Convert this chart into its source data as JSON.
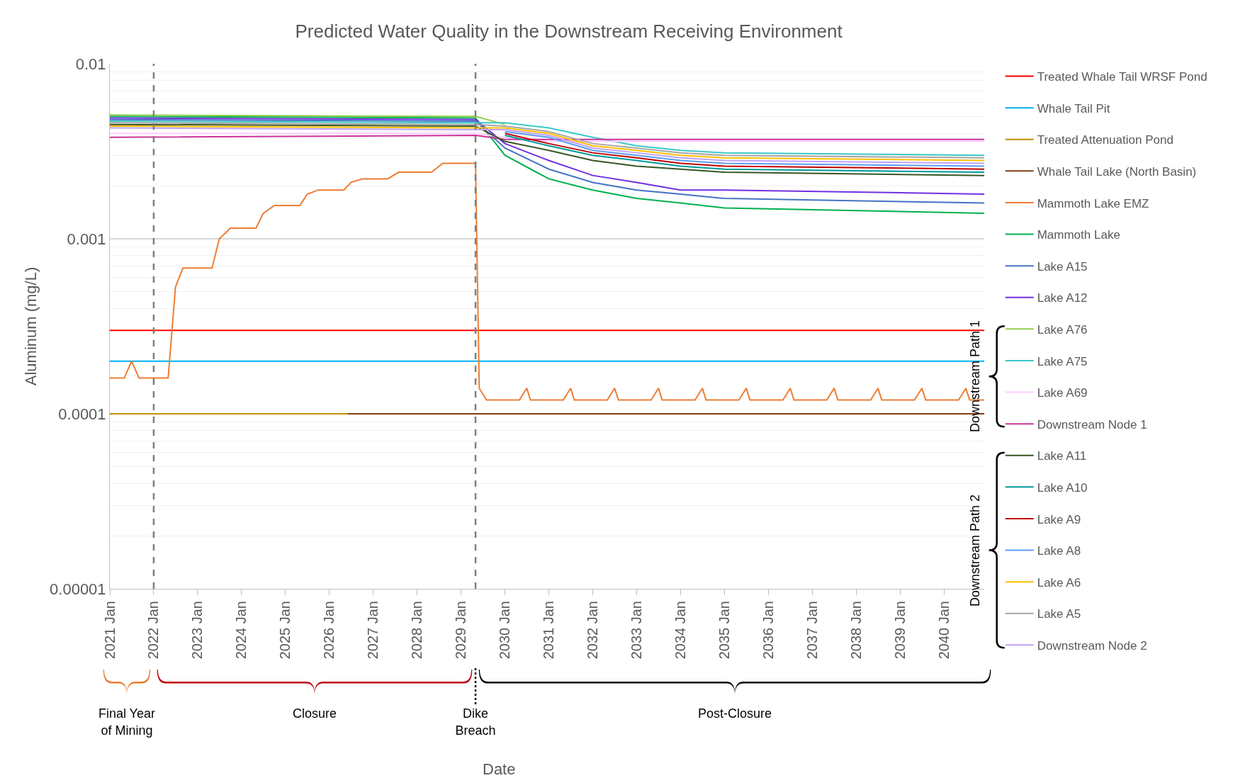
{
  "chart_data": {
    "type": "line",
    "title": "Predicted Water Quality in the Downstream Receiving Environment",
    "ylabel": "Aluminum (mg/L)",
    "x": [
      "2021-01",
      "2029-05",
      "2030-01",
      "2031-01",
      "2032-01",
      "2033-01",
      "2034-01",
      "2035-01",
      "2040-12"
    ],
    "series": [
      {
        "name": "Treated Whale Tail WRSF Pond",
        "color": "#ff0000",
        "x": [
          "2021-01",
          "2040-12"
        ],
        "values": [
          0.0003,
          0.0003
        ]
      },
      {
        "name": "Whale Tail Pit",
        "color": "#00b0f0",
        "x": [
          "2021-01",
          "2040-12"
        ],
        "values": [
          0.0002,
          0.0002
        ]
      },
      {
        "name": "Treated Attenuation Pond",
        "color": "#bf9000",
        "x": [
          "2021-01",
          "2026-06"
        ],
        "values": [
          0.0001,
          0.0001
        ]
      },
      {
        "name": "Whale Tail Lake (North Basin)",
        "color": "#843c0c",
        "x": [
          "2026-06",
          "2040-12"
        ],
        "values": [
          0.0001,
          0.0001
        ]
      },
      {
        "name": "Mammoth Lake EMZ",
        "color": "#ed7d31",
        "x": [
          "2021-01",
          "2021-05",
          "2021-07",
          "2021-09",
          "2022-05",
          "2022-07",
          "2022-09",
          "2023-05",
          "2023-07",
          "2023-10",
          "2024-05",
          "2024-07",
          "2024-10",
          "2025-05",
          "2025-07",
          "2025-10",
          "2026-05",
          "2026-07",
          "2026-10",
          "2027-05",
          "2027-08",
          "2028-05",
          "2028-08",
          "2029-05",
          "2029-06",
          "2029-08",
          "2030-05",
          "2030-07",
          "2030-08",
          "2031-05",
          "2031-07",
          "2031-08",
          "2032-05",
          "2032-07",
          "2032-08",
          "2033-05",
          "2033-07",
          "2033-08",
          "2034-05",
          "2034-07",
          "2034-08",
          "2035-05",
          "2035-07",
          "2035-08",
          "2036-05",
          "2036-07",
          "2036-08",
          "2037-05",
          "2037-07",
          "2037-08",
          "2038-05",
          "2038-07",
          "2038-08",
          "2039-05",
          "2039-07",
          "2039-08",
          "2040-05",
          "2040-07",
          "2040-08",
          "2040-12"
        ],
        "values": [
          0.00016,
          0.00016,
          0.0002,
          0.00016,
          0.00016,
          0.00053,
          0.00068,
          0.00068,
          0.001,
          0.00115,
          0.00115,
          0.0014,
          0.00155,
          0.00155,
          0.0018,
          0.0019,
          0.0019,
          0.0021,
          0.0022,
          0.0022,
          0.0024,
          0.0024,
          0.0027,
          0.0027,
          0.00014,
          0.00012,
          0.00012,
          0.00014,
          0.00012,
          0.00012,
          0.00014,
          0.00012,
          0.00012,
          0.00014,
          0.00012,
          0.00012,
          0.00014,
          0.00012,
          0.00012,
          0.00014,
          0.00012,
          0.00012,
          0.00014,
          0.00012,
          0.00012,
          0.00014,
          0.00012,
          0.00012,
          0.00014,
          0.00012,
          0.00012,
          0.00014,
          0.00012,
          0.00012,
          0.00014,
          0.00012,
          0.00012,
          0.00014,
          0.00012,
          0.00012
        ]
      },
      {
        "name": "Mammoth Lake",
        "color": "#00b050",
        "values": [
          0.005,
          0.0049,
          0.003,
          0.0022,
          0.0019,
          0.0017,
          0.0016,
          0.0015,
          0.0014
        ]
      },
      {
        "name": "Lake A15",
        "color": "#4472c4",
        "values": [
          0.0048,
          0.0047,
          0.0033,
          0.0025,
          0.0021,
          0.0019,
          0.0018,
          0.0017,
          0.0016
        ]
      },
      {
        "name": "Lake A12",
        "color": "#7030e0",
        "values": [
          0.0049,
          0.0048,
          0.0035,
          0.0028,
          0.0023,
          0.0021,
          0.0019,
          0.0019,
          0.0018
        ]
      },
      {
        "name": "Lake A76",
        "color": "#92d050",
        "values": [
          0.0051,
          0.005,
          0.0045,
          null,
          null,
          null,
          null,
          null,
          null
        ]
      },
      {
        "name": "Lake A75",
        "color": "#3cc8c8",
        "values": [
          0.0047,
          0.0046,
          0.0046,
          0.0043,
          0.0038,
          0.0034,
          0.0032,
          0.0031,
          0.003
        ]
      },
      {
        "name": "Lake A69",
        "color": "#ffccff",
        "values": [
          0.004,
          0.004,
          0.0038,
          0.0036,
          0.0036,
          0.0036,
          0.0036,
          0.0036,
          0.0036
        ]
      },
      {
        "name": "Downstream Node 1",
        "color": "#cc3399",
        "values": [
          0.0038,
          0.0039,
          0.0037,
          0.0037,
          0.0037,
          0.0037,
          0.0037,
          0.0037,
          0.0037
        ]
      },
      {
        "name": "Lake A11",
        "color": "#375623",
        "values": [
          0.0045,
          0.0044,
          0.0036,
          0.0032,
          0.0028,
          0.0026,
          0.0025,
          0.0024,
          0.0023
        ]
      },
      {
        "name": "Lake A10",
        "color": "#009999",
        "values": [
          null,
          null,
          0.0039,
          0.0034,
          0.003,
          0.0028,
          0.0026,
          0.0025,
          0.0024
        ]
      },
      {
        "name": "Lake A9",
        "color": "#c00000",
        "values": [
          null,
          null,
          0.004,
          0.0035,
          0.0031,
          0.0029,
          0.0027,
          0.0026,
          0.0025
        ]
      },
      {
        "name": "Lake A8",
        "color": "#5b9bf5",
        "values": [
          null,
          null,
          0.0041,
          0.0038,
          0.0032,
          0.003,
          0.0028,
          0.0027,
          0.0026
        ]
      },
      {
        "name": "Lake A6",
        "color": "#ffc000",
        "values": [
          0.0044,
          0.0043,
          0.0043,
          0.004,
          0.0034,
          0.0032,
          0.003,
          0.0029,
          0.0028
        ]
      },
      {
        "name": "Lake A5",
        "color": "#a5a5a5",
        "values": [
          0.0046,
          0.0045,
          0.0044,
          0.0041,
          0.0035,
          0.0033,
          0.0031,
          0.003,
          0.0029
        ]
      },
      {
        "name": "Downstream Node 2",
        "color": "#c0a0f8",
        "values": [
          0.0043,
          0.0042,
          0.0042,
          0.0039,
          0.0033,
          0.0031,
          0.0029,
          0.0028,
          0.0027
        ]
      }
    ],
    "log": "y",
    "ylim": [
      1e-05,
      0.01
    ],
    "yticks": [
      {
        "value": 1e-05,
        "label": "0.00001"
      },
      {
        "value": 0.0001,
        "label": "0.0001"
      },
      {
        "value": 0.001,
        "label": "0.001"
      },
      {
        "value": 0.01,
        "label": "0.01"
      }
    ],
    "xlim": [
      "2021-01",
      "2040-12"
    ],
    "xticks": [
      {
        "value": "2021-01",
        "label": "2021 Jan"
      },
      {
        "value": "2022-01",
        "label": "2022 Jan"
      },
      {
        "value": "2023-01",
        "label": "2023 Jan"
      },
      {
        "value": "2024-01",
        "label": "2024 Jan"
      },
      {
        "value": "2025-01",
        "label": "2025 Jan"
      },
      {
        "value": "2026-01",
        "label": "2026 Jan"
      },
      {
        "value": "2027-01",
        "label": "2027 Jan"
      },
      {
        "value": "2028-01",
        "label": "2028 Jan"
      },
      {
        "value": "2029-01",
        "label": "2029 Jan"
      },
      {
        "value": "2030-01",
        "label": "2030 Jan"
      },
      {
        "value": "2031-01",
        "label": "2031 Jan"
      },
      {
        "value": "2032-01",
        "label": "2032 Jan"
      },
      {
        "value": "2033-01",
        "label": "2033 Jan"
      },
      {
        "value": "2034-01",
        "label": "2034 Jan"
      },
      {
        "value": "2035-01",
        "label": "2035 Jan"
      },
      {
        "value": "2036-01",
        "label": "2036 Jan"
      },
      {
        "value": "2037-01",
        "label": "2037 Jan"
      },
      {
        "value": "2038-01",
        "label": "2038 Jan"
      },
      {
        "value": "2039-01",
        "label": "2039 Jan"
      },
      {
        "value": "2040-01",
        "label": "2040 Jan"
      }
    ],
    "ref_lines": [
      {
        "axis": "x",
        "value": "2022-01",
        "color": "#7f7f7f",
        "line_style": "dashed"
      },
      {
        "axis": "x",
        "value": "2029-05",
        "color": "#7f7f7f",
        "line_style": "dashed"
      }
    ],
    "annotations": [
      "Final Year of Mining",
      "Closure",
      "Dike Breach",
      "Post-Closure",
      "Downstream Path 1",
      "Downstream Path 2",
      "Date"
    ],
    "grid": "y",
    "legend": "right",
    "marker": "none",
    "line_style": "solid"
  }
}
